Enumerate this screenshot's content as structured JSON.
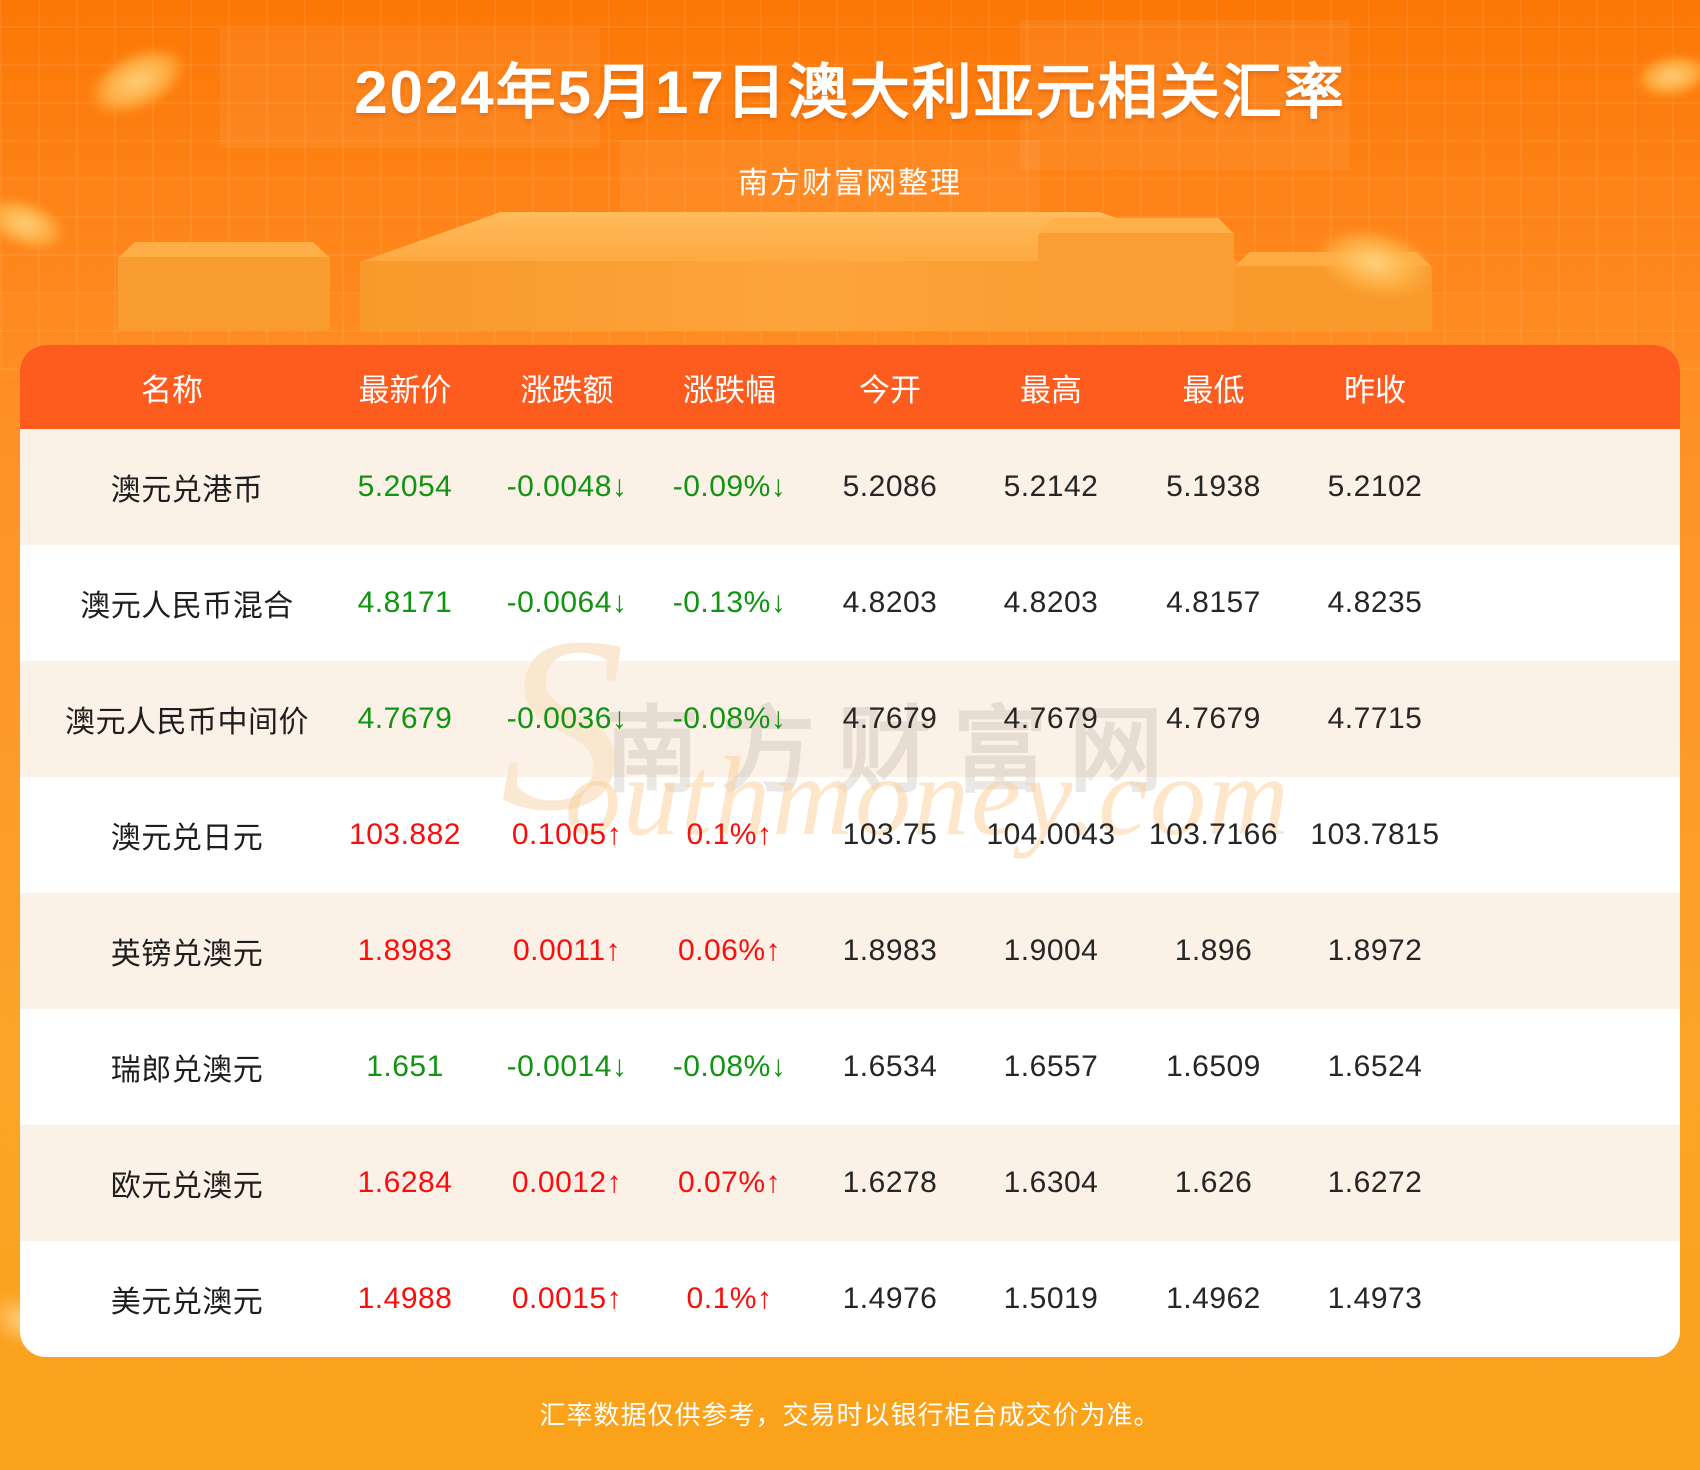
{
  "chart_data": {
    "type": "table",
    "title": "2024年5月17日澳大利亚元相关汇率",
    "source": "南方财富网整理",
    "note": "汇率数据仅供参考，交易时以银行柜台成交价为准。",
    "columns": [
      "名称",
      "最新价",
      "涨跌额",
      "涨跌幅",
      "今开",
      "最高",
      "最低",
      "昨收"
    ],
    "rows": [
      {
        "name": "澳元兑港币",
        "last": "5.2054",
        "change": "-0.0048↓",
        "change_pct": "-0.09%↓",
        "open": "5.2086",
        "high": "5.2142",
        "low": "5.1938",
        "prev_close": "5.2102",
        "trend": "down"
      },
      {
        "name": "澳元人民币混合",
        "last": "4.8171",
        "change": "-0.0064↓",
        "change_pct": "-0.13%↓",
        "open": "4.8203",
        "high": "4.8203",
        "low": "4.8157",
        "prev_close": "4.8235",
        "trend": "down"
      },
      {
        "name": "澳元人民币中间价",
        "last": "4.7679",
        "change": "-0.0036↓",
        "change_pct": "-0.08%↓",
        "open": "4.7679",
        "high": "4.7679",
        "low": "4.7679",
        "prev_close": "4.7715",
        "trend": "down"
      },
      {
        "name": "澳元兑日元",
        "last": "103.882",
        "change": "0.1005↑",
        "change_pct": "0.1%↑",
        "open": "103.75",
        "high": "104.0043",
        "low": "103.7166",
        "prev_close": "103.7815",
        "trend": "up"
      },
      {
        "name": "英镑兑澳元",
        "last": "1.8983",
        "change": "0.0011↑",
        "change_pct": "0.06%↑",
        "open": "1.8983",
        "high": "1.9004",
        "low": "1.896",
        "prev_close": "1.8972",
        "trend": "up"
      },
      {
        "name": "瑞郎兑澳元",
        "last": "1.651",
        "change": "-0.0014↓",
        "change_pct": "-0.08%↓",
        "open": "1.6534",
        "high": "1.6557",
        "low": "1.6509",
        "prev_close": "1.6524",
        "trend": "down"
      },
      {
        "name": "欧元兑澳元",
        "last": "1.6284",
        "change": "0.0012↑",
        "change_pct": "0.07%↑",
        "open": "1.6278",
        "high": "1.6304",
        "low": "1.626",
        "prev_close": "1.6272",
        "trend": "up"
      },
      {
        "name": "美元兑澳元",
        "last": "1.4988",
        "change": "0.0015↑",
        "change_pct": "0.1%↑",
        "open": "1.4976",
        "high": "1.5019",
        "low": "1.4962",
        "prev_close": "1.4973",
        "trend": "up"
      }
    ]
  },
  "watermark": {
    "initial": "S",
    "cjk": "南方财富网",
    "latin": "outhmoney.com"
  },
  "colors": {
    "header_bg": "#fe5c1e",
    "row_alt_bg": "#fcf1e7",
    "up_red": "#fc0d0c",
    "down_green": "#119411",
    "footer_bg": "#f9a21a",
    "page_top": "#fc7705",
    "page_bottom": "#f9a21a"
  }
}
